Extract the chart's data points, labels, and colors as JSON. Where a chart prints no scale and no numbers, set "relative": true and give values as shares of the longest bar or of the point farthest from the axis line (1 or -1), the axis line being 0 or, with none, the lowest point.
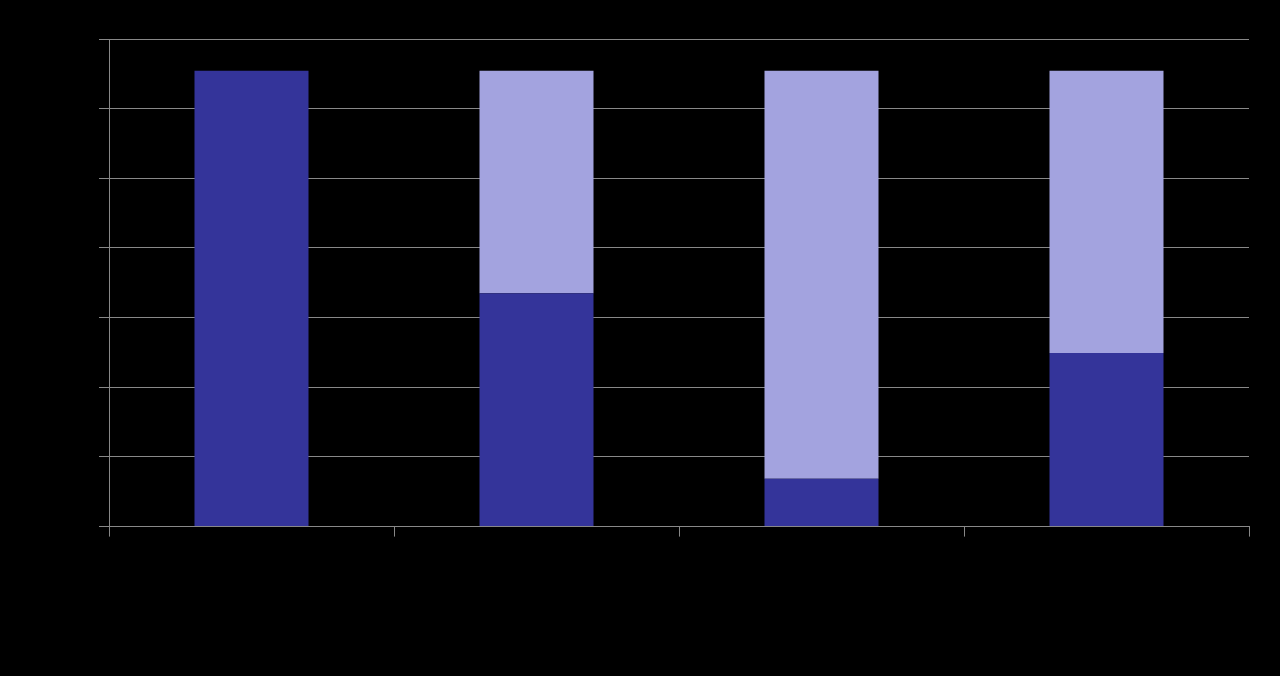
{
  "chart_data": {
    "type": "bar",
    "stacked": true,
    "relative": true,
    "categories": [
      null,
      null,
      null,
      null
    ],
    "series": [
      {
        "color": "#34349a",
        "values": [
          1,
          0.512,
          0.105,
          0.381
        ]
      },
      {
        "color": "#a3a3df",
        "values": [
          0,
          0.488,
          0.895,
          0.619
        ]
      }
    ],
    "grid": "y",
    "legend": false
  }
}
